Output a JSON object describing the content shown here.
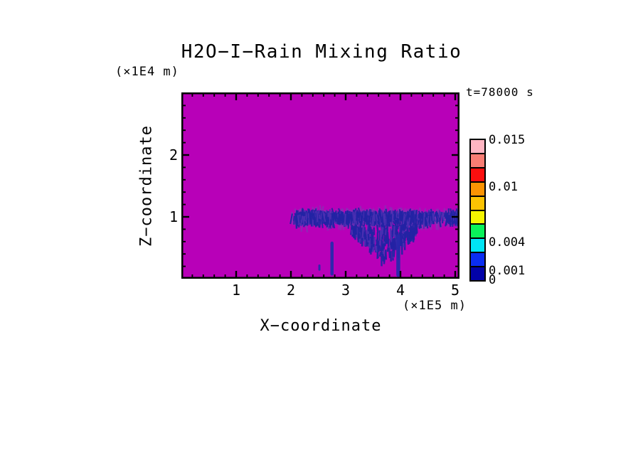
{
  "figure": {
    "title": "H2O−I−Rain Mixing Ratio",
    "time_annotation": "t=78000 s",
    "y_axis_unit": "(×1E4 m)",
    "x_axis_unit": "(×1E5 m)",
    "x_axis_title": "X−coordinate",
    "y_axis_title": "Z−coordinate"
  },
  "chart_data": {
    "type": "heatmap",
    "title": "H2O−I−Rain Mixing Ratio",
    "xlabel": "X−coordinate",
    "ylabel": "Z−coordinate",
    "x_unit": "(×1E5 m)",
    "y_unit": "(×1E4 m)",
    "time_annotation": "t=78000 s",
    "xlim": [
      0,
      5.08
    ],
    "ylim": [
      0,
      3.0
    ],
    "x_tick_values": [
      1,
      2,
      3,
      4,
      5
    ],
    "x_tick_labels": [
      "1",
      "2",
      "3",
      "4",
      "5"
    ],
    "y_tick_values": [
      1,
      2
    ],
    "y_tick_labels": [
      "1",
      "2"
    ],
    "minor_tick_step": 0.2,
    "grid": false,
    "background_value_color": "#B800B8",
    "field_colors": {
      "band_core": "#2323A4",
      "band_mid": "#4A2FB2",
      "band_haze": "#8A2EB6",
      "streak": "#2828AC"
    },
    "colorbar": {
      "position": "right",
      "value_max": 0.015,
      "value_min": 0,
      "segment_colors_top_to_bottom": [
        "#FFB5C2",
        "#F97D74",
        "#FB0F0F",
        "#FB9303",
        "#FCC303",
        "#F4F400",
        "#0AF25A",
        "#00E4F4",
        "#0A2DF2",
        "#0202A8"
      ],
      "labels": [
        {
          "text": "0.015",
          "value": 0.015
        },
        {
          "text": "0.01",
          "value": 0.01
        },
        {
          "text": "0.004",
          "value": 0.004
        },
        {
          "text": "0.001",
          "value": 0.001
        },
        {
          "text": "0",
          "value": 0
        }
      ]
    },
    "features": [
      {
        "name": "rain-band",
        "x_range": [
          2.0,
          5.08
        ],
        "z_center": 1.05,
        "z_range": [
          0.85,
          1.25
        ],
        "value_range": [
          0.001,
          0.003
        ],
        "notch_x_range": [
          4.6,
          4.85
        ]
      },
      {
        "name": "downdraft-plume",
        "x_range": [
          3.1,
          4.3
        ],
        "peak_x": 3.74,
        "z_range": [
          0.35,
          1.0
        ]
      },
      {
        "name": "fall-streak-left",
        "x": 2.75,
        "z_range": [
          0.05,
          0.6
        ]
      },
      {
        "name": "fall-streak-right",
        "x": 3.96,
        "z_range": [
          0.03,
          0.72
        ]
      },
      {
        "name": "speck",
        "x": 2.52,
        "z_range": [
          0.13,
          0.23
        ]
      }
    ]
  }
}
